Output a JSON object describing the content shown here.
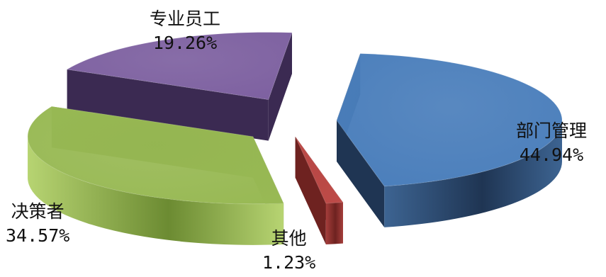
{
  "chart_data": {
    "type": "pie",
    "style": "3d-exploded",
    "unit": "%",
    "slices": [
      {
        "name": "部门管理",
        "value": 44.94,
        "label": "44.94%",
        "color": "#4a7ebb",
        "side": "#1f3553",
        "side_light": "#3d6492"
      },
      {
        "name": "其他",
        "value": 1.23,
        "label": "1.23%",
        "color": "#be4b48",
        "side": "#6e2220",
        "side_light": "#a53e3b"
      },
      {
        "name": "决策者",
        "value": 34.57,
        "label": "34.57%",
        "color": "#98b954",
        "side": "#6c8b32",
        "side_light": "#b7d472"
      },
      {
        "name": "专业员工",
        "value": 19.26,
        "label": "19.26%",
        "color": "#7d60a0",
        "side": "#3b2a52",
        "side_light": "#6a4f8c"
      }
    ]
  }
}
